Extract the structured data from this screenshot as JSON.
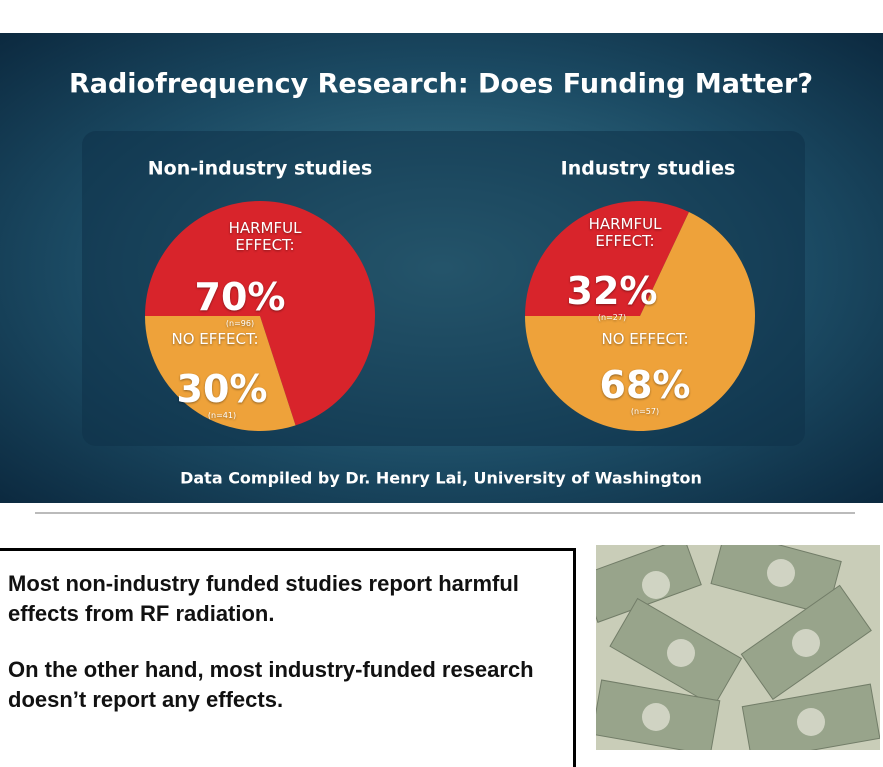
{
  "slide": {
    "title": "Radiofrequency Research: Does Funding Matter?",
    "credit": "Data Compiled by Dr. Henry Lai, University of Washington"
  },
  "chart_data": [
    {
      "type": "pie",
      "title": "Non-industry studies",
      "categories": [
        "HARMFUL EFFECT:",
        "NO EFFECT:"
      ],
      "values": [
        70,
        30
      ],
      "value_labels": [
        "70%",
        "30%"
      ],
      "sample_labels": [
        "(n=96)",
        "(n=41)"
      ],
      "colors": [
        "#d8242b",
        "#eea23a"
      ]
    },
    {
      "type": "pie",
      "title": "Industry studies",
      "categories": [
        "HARMFUL EFFECT:",
        "NO EFFECT:"
      ],
      "values": [
        32,
        68
      ],
      "value_labels": [
        "32%",
        "68%"
      ],
      "sample_labels": [
        "(n=27)",
        "(n=57)"
      ],
      "colors": [
        "#d8242b",
        "#eea23a"
      ]
    }
  ],
  "caption": {
    "paragraphs": [
      "Most non-industry funded studies report harmful effects from RF radiation.",
      "On the other hand, most industry-funded research doesn’t report any effects."
    ]
  }
}
